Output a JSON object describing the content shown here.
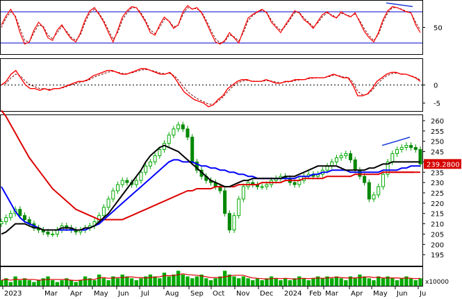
{
  "chart_data": [
    {
      "type": "line",
      "panel": "oscillator-top",
      "yticks": [
        50
      ],
      "ylim": [
        0,
        100
      ],
      "reference_lines": [
        80,
        20
      ],
      "colors": {
        "main": "#ff0000",
        "signal": "#7a0000",
        "reference": "#0000cc",
        "trend": "#1f3fd6"
      },
      "series": [
        {
          "values": [
            55,
            72,
            85,
            70,
            40,
            18,
            22,
            45,
            60,
            50,
            30,
            25,
            45,
            55,
            40,
            28,
            22,
            40,
            65,
            82,
            88,
            75,
            60,
            40,
            22,
            45,
            70,
            82,
            90,
            88,
            75,
            60,
            40,
            35,
            55,
            70,
            62,
            48,
            55,
            80,
            92,
            85,
            88,
            78,
            60,
            40,
            22,
            18,
            25,
            40,
            30,
            20,
            45,
            68,
            75,
            80,
            85,
            78,
            60,
            50,
            40,
            55,
            68,
            82,
            78,
            65,
            58,
            48,
            62,
            75,
            80,
            72,
            68,
            80,
            74,
            70,
            78,
            60,
            42,
            30,
            22,
            40,
            65,
            82,
            90,
            88,
            84,
            80,
            78,
            55,
            40
          ]
        },
        {
          "values": [
            50,
            68,
            80,
            72,
            48,
            25,
            22,
            40,
            55,
            52,
            35,
            28,
            40,
            52,
            43,
            31,
            25,
            36,
            60,
            78,
            85,
            77,
            63,
            45,
            27,
            40,
            65,
            78,
            88,
            88,
            78,
            63,
            45,
            38,
            50,
            66,
            63,
            51,
            54,
            75,
            88,
            86,
            86,
            80,
            64,
            45,
            28,
            20,
            23,
            36,
            32,
            24,
            40,
            63,
            73,
            79,
            83,
            79,
            64,
            53,
            44,
            52,
            65,
            78,
            79,
            68,
            60,
            51,
            59,
            71,
            78,
            74,
            69,
            77,
            75,
            71,
            76,
            63,
            47,
            34,
            25,
            36,
            60,
            78,
            88,
            88,
            85,
            81,
            78,
            60,
            45
          ]
        }
      ]
    },
    {
      "type": "line",
      "panel": "oscillator-middle",
      "yticks": [
        0,
        -5
      ],
      "ylim": [
        -7,
        7
      ],
      "reference_lines": [
        0
      ],
      "colors": {
        "main": "#ff0000",
        "signal": "#7a0000",
        "zero": "#000000"
      },
      "series": [
        {
          "values": [
            0,
            1,
            3,
            4,
            2,
            0,
            -1,
            -1,
            -1.5,
            -1,
            -1.5,
            -1,
            -1,
            -0.5,
            0,
            0.5,
            1,
            1,
            1.5,
            2.5,
            3,
            3.5,
            4,
            4,
            3.5,
            3,
            3,
            3.5,
            4,
            4.5,
            4.5,
            4,
            3.5,
            3,
            3,
            3.5,
            2,
            0,
            -2,
            -3,
            -4,
            -4.5,
            -5,
            -6,
            -5.5,
            -4,
            -3,
            -1,
            0,
            1,
            1.5,
            1.5,
            1,
            1,
            1,
            1.5,
            1,
            0.5,
            0.5,
            1,
            1,
            1.5,
            1.5,
            1.5,
            2,
            2,
            2,
            2,
            2.5,
            3,
            2.5,
            2,
            2,
            0,
            -3,
            -3,
            -2.5,
            -1,
            1,
            2,
            3,
            3.5,
            3.5,
            3,
            3,
            2.5,
            2,
            1
          ]
        },
        {
          "values": [
            0,
            0.5,
            2,
            3,
            2.5,
            1,
            0,
            -0.5,
            -1,
            -1,
            -1.2,
            -1,
            -1,
            -0.7,
            -0.2,
            0.2,
            0.6,
            0.9,
            1.3,
            2,
            2.6,
            3,
            3.5,
            3.8,
            3.6,
            3.2,
            3.1,
            3.3,
            3.7,
            4.1,
            4.3,
            4.1,
            3.7,
            3.3,
            3.1,
            3.2,
            2.5,
            1,
            -0.8,
            -2.2,
            -3.2,
            -4,
            -4.6,
            -5.3,
            -5.3,
            -4.5,
            -3.4,
            -1.8,
            -0.5,
            0.5,
            1.1,
            1.3,
            1.1,
            1,
            1,
            1.2,
            1.1,
            0.8,
            0.6,
            0.8,
            0.9,
            1.2,
            1.4,
            1.5,
            1.8,
            1.9,
            2,
            2,
            2.3,
            2.7,
            2.6,
            2.2,
            2.1,
            0.8,
            -1.8,
            -2.7,
            -2.6,
            -1.5,
            0.2,
            1.5,
            2.5,
            3.1,
            3.3,
            3.1,
            3,
            2.6,
            2.1,
            1.4
          ]
        }
      ]
    },
    {
      "type": "candlestick",
      "panel": "price",
      "yticks": [
        195,
        200,
        205,
        210,
        215,
        220,
        225,
        230,
        235,
        240,
        245,
        250,
        255,
        260
      ],
      "ylim": [
        190,
        262
      ],
      "last_price_label": "239.2800",
      "xticks": [
        "2023",
        "Mar",
        "Apr",
        "May",
        "Jun",
        "Jul",
        "Aug",
        "Sep",
        "Oct",
        "Nov",
        "Dec",
        "2024",
        "Feb",
        "Mar",
        "Apr",
        "May",
        "Jun",
        "Ju"
      ],
      "colors": {
        "up": "#00aa00",
        "down": "#008800",
        "ma_short": "#000000",
        "ma_mid": "#0000ff",
        "ma_long": "#dd0000",
        "trend": "#1f3fd6"
      },
      "closes": [
        211,
        213,
        215,
        217,
        214,
        212,
        210,
        208,
        207,
        206,
        205,
        205,
        207,
        209,
        208,
        207,
        206,
        207,
        208,
        209,
        211,
        214,
        218,
        222,
        226,
        229,
        231,
        230,
        229,
        231,
        235,
        238,
        240,
        243,
        246,
        249,
        253,
        256,
        258,
        256,
        252,
        240,
        236,
        233,
        231,
        230,
        228,
        226,
        215,
        207,
        214,
        222,
        228,
        230,
        229,
        228,
        228,
        229,
        231,
        232,
        233,
        232,
        230,
        229,
        231,
        233,
        234,
        233,
        234,
        236,
        238,
        240,
        242,
        243,
        244,
        241,
        236,
        233,
        230,
        222,
        224,
        228,
        234,
        240,
        244,
        246,
        247,
        248,
        247,
        246,
        239
      ],
      "ma_short": [
        205,
        206,
        208,
        210,
        210,
        210,
        209,
        208,
        208,
        207,
        207,
        207,
        207,
        208,
        208,
        208,
        207,
        207,
        208,
        208,
        209,
        211,
        213,
        215,
        218,
        221,
        224,
        227,
        230,
        233,
        236,
        240,
        243,
        245,
        247,
        248,
        247,
        246,
        245,
        243,
        241,
        239,
        237,
        235,
        233,
        231,
        230,
        229,
        228,
        228,
        229,
        230,
        231,
        231,
        232,
        232,
        232,
        232,
        232,
        232,
        232,
        233,
        233,
        233,
        234,
        235,
        236,
        237,
        238,
        238,
        238,
        238,
        238,
        237,
        236,
        236,
        236,
        236,
        236,
        237,
        237,
        238,
        239,
        239,
        240,
        240,
        240,
        240,
        240,
        240,
        240
      ],
      "ma_mid": [
        228,
        224,
        220,
        216,
        213,
        211,
        210,
        209,
        208,
        207,
        207,
        207,
        207,
        207,
        207,
        207,
        207,
        207,
        207,
        208,
        209,
        210,
        212,
        214,
        216,
        218,
        220,
        222,
        224,
        226,
        228,
        230,
        232,
        234,
        236,
        238,
        240,
        241,
        241,
        240,
        240,
        240,
        239,
        238,
        238,
        237,
        237,
        236,
        236,
        235,
        235,
        234,
        234,
        233,
        233,
        232,
        232,
        232,
        232,
        232,
        232,
        232,
        232,
        232,
        233,
        233,
        233,
        234,
        234,
        235,
        235,
        236,
        236,
        236,
        236,
        235,
        235,
        235,
        235,
        235,
        235,
        235,
        236,
        236,
        236,
        236,
        237,
        237,
        238,
        238,
        238
      ],
      "ma_long": [
        265,
        262,
        258,
        254,
        250,
        246,
        242,
        239,
        236,
        233,
        230,
        227,
        225,
        223,
        221,
        219,
        217,
        216,
        215,
        214,
        213,
        212,
        212,
        212,
        212,
        212,
        212,
        213,
        214,
        215,
        216,
        217,
        218,
        219,
        220,
        221,
        222,
        223,
        224,
        225,
        226,
        226,
        227,
        227,
        227,
        227,
        228,
        228,
        228,
        228,
        228,
        229,
        229,
        229,
        229,
        229,
        230,
        230,
        230,
        230,
        230,
        231,
        231,
        231,
        231,
        232,
        232,
        232,
        232,
        232,
        233,
        233,
        233,
        233,
        233,
        233,
        234,
        234,
        234,
        234,
        234,
        234,
        235,
        235,
        235,
        235,
        235,
        235,
        235,
        235,
        235
      ]
    },
    {
      "type": "bar",
      "panel": "volume",
      "unit_label": "x10000",
      "colors": {
        "bar": "#00aa00",
        "line": "#dd0000"
      },
      "values": [
        3,
        4,
        2,
        5,
        3,
        4,
        3,
        2,
        3,
        4,
        5,
        3,
        2,
        3,
        4,
        3,
        2,
        3,
        5,
        4,
        3,
        6,
        4,
        3,
        5,
        4,
        6,
        5,
        4,
        3,
        4,
        5,
        6,
        5,
        4,
        7,
        5,
        6,
        8,
        6,
        5,
        4,
        5,
        6,
        4,
        3,
        4,
        5,
        8,
        6,
        5,
        4,
        5,
        4,
        3,
        4,
        3,
        4,
        5,
        4,
        3,
        4,
        3,
        4,
        5,
        4,
        3,
        4,
        5,
        4,
        5,
        4,
        5,
        4,
        3,
        5,
        4,
        6,
        5,
        4,
        3,
        5,
        4,
        5,
        4,
        3,
        4,
        5,
        4,
        3,
        4
      ]
    }
  ]
}
